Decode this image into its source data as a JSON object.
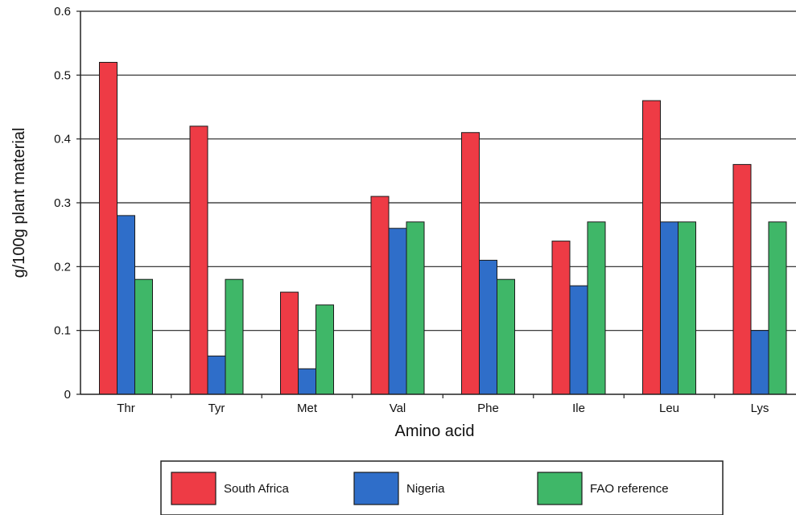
{
  "chart_data": {
    "type": "bar",
    "title": "",
    "xlabel": "Amino acid",
    "ylabel": "g/100g plant material",
    "categories": [
      "Thr",
      "Tyr",
      "Met",
      "Val",
      "Phe",
      "Ile",
      "Leu",
      "Lys"
    ],
    "series": [
      {
        "name": "South Africa",
        "color": "#ee3b45",
        "values": [
          0.52,
          0.42,
          0.16,
          0.31,
          0.41,
          0.24,
          0.46,
          0.36
        ]
      },
      {
        "name": "Nigeria",
        "color": "#2f6ec9",
        "values": [
          0.28,
          0.06,
          0.04,
          0.26,
          0.21,
          0.17,
          0.27,
          0.1
        ]
      },
      {
        "name": "FAO reference",
        "color": "#3fb768",
        "values": [
          0.18,
          0.18,
          0.14,
          0.27,
          0.18,
          0.27,
          0.27,
          0.27
        ]
      }
    ],
    "ylim": [
      0,
      0.6
    ],
    "yticks": [
      "0",
      "0.1",
      "0.2",
      "0.3",
      "0.4",
      "0.5",
      "0.6"
    ],
    "grid": "horizontal",
    "legend_position": "bottom"
  }
}
